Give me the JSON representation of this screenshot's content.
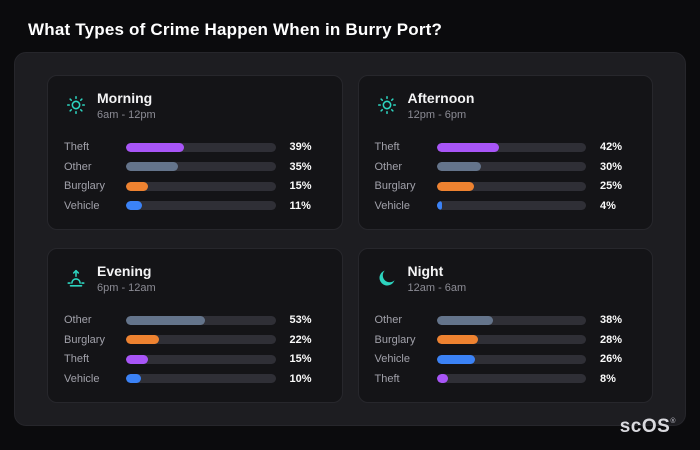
{
  "colors": {
    "purple": "#a855f7",
    "slate": "#64748b",
    "orange": "#ee8230",
    "blue": "#3b82f6",
    "accent_teal": "#2dd4bf",
    "track": "#2f2f36",
    "page_bg": "#0b0b0d",
    "panel_bg": "#1d1d21",
    "card_bg": "#141417"
  },
  "footer": {
    "brand": "scOS",
    "registered": "®"
  },
  "chart_data": {
    "type": "bar",
    "title": "What Types of Crime Happen When in Burry Port?",
    "orientation": "horizontal",
    "xlim": [
      0,
      100
    ],
    "grid": false,
    "legend": false,
    "charts": [
      {
        "name": "Morning",
        "time_range": "6am - 12pm",
        "icon": "sun-icon",
        "categories": [
          "Theft",
          "Other",
          "Burglary",
          "Vehicle"
        ],
        "values": [
          39,
          35,
          15,
          11
        ],
        "labels": [
          "39%",
          "35%",
          "15%",
          "11%"
        ],
        "colors": [
          "purple",
          "slate",
          "orange",
          "blue"
        ]
      },
      {
        "name": "Afternoon",
        "time_range": "12pm - 6pm",
        "icon": "sun-icon",
        "categories": [
          "Theft",
          "Other",
          "Burglary",
          "Vehicle"
        ],
        "values": [
          42,
          30,
          25,
          4
        ],
        "labels": [
          "42%",
          "30%",
          "25%",
          "4%"
        ],
        "colors": [
          "purple",
          "slate",
          "orange",
          "blue"
        ]
      },
      {
        "name": "Evening",
        "time_range": "6pm - 12am",
        "icon": "sunset-icon",
        "categories": [
          "Other",
          "Burglary",
          "Theft",
          "Vehicle"
        ],
        "values": [
          53,
          22,
          15,
          10
        ],
        "labels": [
          "53%",
          "22%",
          "15%",
          "10%"
        ],
        "colors": [
          "slate",
          "orange",
          "purple",
          "blue"
        ]
      },
      {
        "name": "Night",
        "time_range": "12am - 6am",
        "icon": "moon-icon",
        "categories": [
          "Other",
          "Burglary",
          "Vehicle",
          "Theft"
        ],
        "values": [
          38,
          28,
          26,
          8
        ],
        "labels": [
          "38%",
          "28%",
          "26%",
          "8%"
        ],
        "colors": [
          "slate",
          "orange",
          "blue",
          "purple"
        ]
      }
    ]
  }
}
